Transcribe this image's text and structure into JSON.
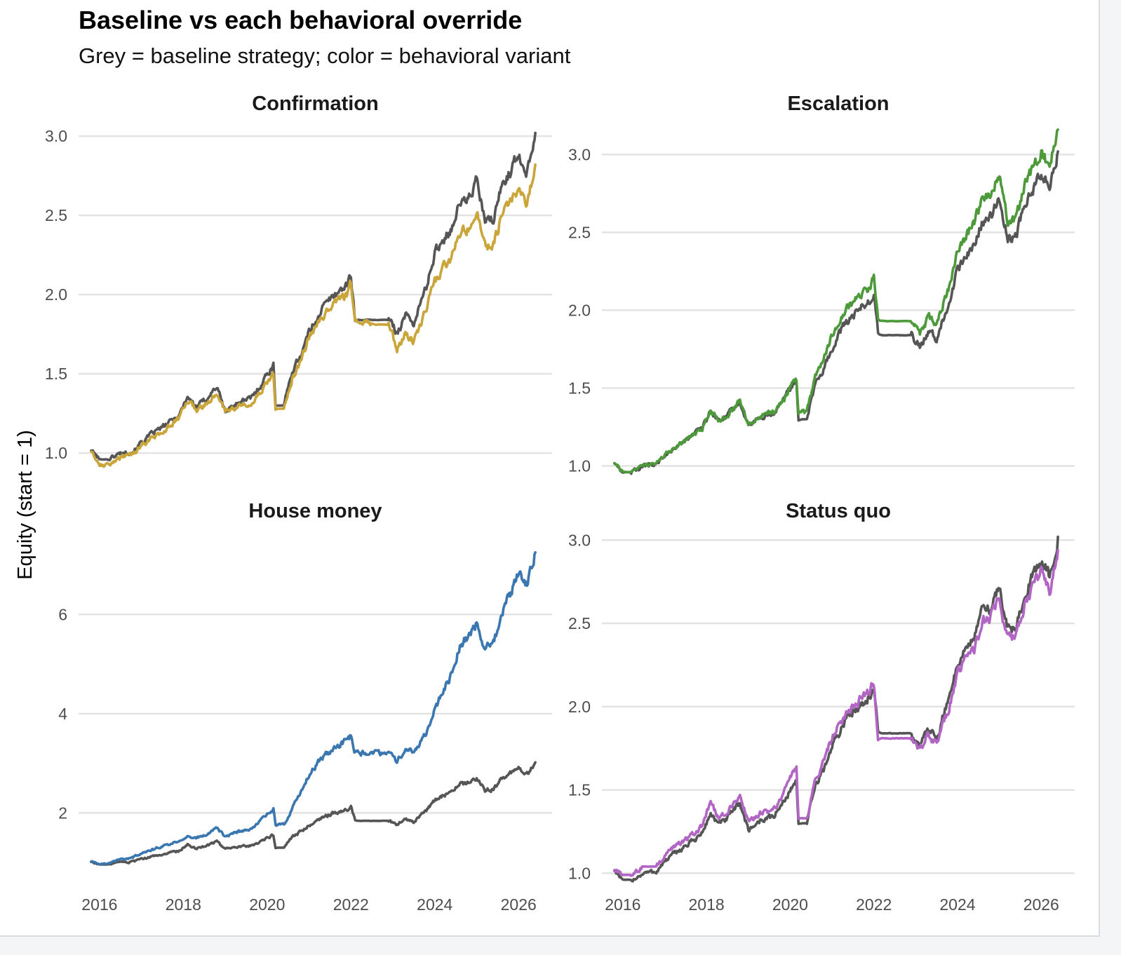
{
  "title": "Baseline vs each behavioral override",
  "subtitle": "Grey = baseline strategy; color = behavioral variant",
  "ylabel": "Equity (start = 1)",
  "baseline_color": "#555555",
  "chart_data": {
    "type": "line",
    "title": "Baseline vs each behavioral override",
    "subtitle": "Grey = baseline strategy; color = behavioral variant",
    "xlabel": "",
    "ylabel": "Equity (start = 1)",
    "x_ticks": [
      "2016",
      "2018",
      "2020",
      "2022",
      "2024",
      "2026"
    ],
    "x_tick_values": [
      2016,
      2018,
      2020,
      2022,
      2024,
      2026
    ],
    "x_range": [
      2015.5,
      2026.8
    ],
    "grid": "horizontal",
    "x": [
      2015.8,
      2016.0,
      2016.2,
      2016.5,
      2016.8,
      2017.0,
      2017.3,
      2017.6,
      2017.9,
      2018.1,
      2018.3,
      2018.5,
      2018.8,
      2019.0,
      2019.3,
      2019.6,
      2019.8,
      2020.0,
      2020.15,
      2020.2,
      2020.4,
      2020.6,
      2020.8,
      2021.0,
      2021.3,
      2021.6,
      2021.9,
      2022.0,
      2022.1,
      2022.5,
      2022.9,
      2023.1,
      2023.3,
      2023.5,
      2023.8,
      2024.0,
      2024.2,
      2024.4,
      2024.6,
      2024.8,
      2025.0,
      2025.2,
      2025.4,
      2025.6,
      2025.8,
      2026.0,
      2026.2,
      2026.4
    ],
    "baseline": [
      1.02,
      0.96,
      0.96,
      1.0,
      1.01,
      1.07,
      1.13,
      1.18,
      1.24,
      1.36,
      1.29,
      1.33,
      1.42,
      1.26,
      1.32,
      1.34,
      1.41,
      1.5,
      1.55,
      1.3,
      1.3,
      1.52,
      1.62,
      1.76,
      1.91,
      2.0,
      2.06,
      2.12,
      1.84,
      1.84,
      1.84,
      1.76,
      1.87,
      1.82,
      2.05,
      2.26,
      2.35,
      2.42,
      2.58,
      2.6,
      2.72,
      2.46,
      2.47,
      2.69,
      2.78,
      2.88,
      2.78,
      3.02
    ],
    "facets": [
      {
        "title": "Confirmation",
        "color": "#c9a53a",
        "y_ticks": [
          "1.0",
          "1.5",
          "2.0",
          "2.5",
          "3.0"
        ],
        "y_tick_values": [
          1.0,
          1.5,
          2.0,
          2.5,
          3.0
        ],
        "ylim": [
          0.85,
          3.08
        ],
        "values": [
          1.01,
          0.93,
          0.92,
          0.97,
          0.99,
          1.05,
          1.1,
          1.15,
          1.22,
          1.33,
          1.27,
          1.3,
          1.37,
          1.26,
          1.3,
          1.32,
          1.37,
          1.45,
          1.5,
          1.28,
          1.28,
          1.47,
          1.58,
          1.73,
          1.86,
          1.95,
          2.0,
          2.07,
          1.82,
          1.81,
          1.81,
          1.66,
          1.75,
          1.7,
          1.92,
          2.08,
          2.17,
          2.23,
          2.39,
          2.42,
          2.53,
          2.3,
          2.31,
          2.5,
          2.58,
          2.68,
          2.57,
          2.82
        ]
      },
      {
        "title": "Escalation",
        "color": "#4d9a3a",
        "y_ticks": [
          "1.0",
          "1.5",
          "2.0",
          "2.5",
          "3.0"
        ],
        "y_tick_values": [
          1.0,
          1.5,
          2.0,
          2.5,
          3.0
        ],
        "ylim": [
          0.93,
          3.2
        ],
        "values": [
          1.02,
          0.96,
          0.96,
          1.0,
          1.01,
          1.07,
          1.13,
          1.18,
          1.24,
          1.36,
          1.29,
          1.33,
          1.42,
          1.26,
          1.32,
          1.34,
          1.41,
          1.5,
          1.56,
          1.33,
          1.35,
          1.57,
          1.68,
          1.84,
          1.99,
          2.08,
          2.15,
          2.21,
          1.93,
          1.93,
          1.93,
          1.84,
          1.96,
          1.91,
          2.15,
          2.38,
          2.48,
          2.56,
          2.73,
          2.76,
          2.88,
          2.57,
          2.58,
          2.81,
          2.91,
          3.02,
          2.92,
          3.16
        ]
      },
      {
        "title": "House money",
        "color": "#3a77b0",
        "y_ticks": [
          "2",
          "4",
          "6"
        ],
        "y_tick_values": [
          2,
          4,
          6
        ],
        "ylim": [
          0.55,
          7.7
        ],
        "values": [
          1.02,
          0.97,
          0.99,
          1.06,
          1.1,
          1.18,
          1.27,
          1.35,
          1.45,
          1.55,
          1.5,
          1.55,
          1.7,
          1.52,
          1.62,
          1.66,
          1.8,
          1.98,
          2.08,
          1.75,
          1.77,
          2.1,
          2.42,
          2.78,
          3.1,
          3.3,
          3.45,
          3.55,
          3.22,
          3.21,
          3.2,
          3.02,
          3.3,
          3.22,
          3.6,
          4.1,
          4.45,
          4.8,
          5.4,
          5.55,
          5.85,
          5.3,
          5.4,
          6.0,
          6.4,
          6.85,
          6.6,
          7.25
        ]
      },
      {
        "title": "Status quo",
        "color": "#b365c6",
        "y_ticks": [
          "1.0",
          "1.5",
          "2.0",
          "2.5",
          "3.0"
        ],
        "y_tick_values": [
          1.0,
          1.5,
          2.0,
          2.5,
          3.0
        ],
        "ylim": [
          0.93,
          3.06
        ],
        "values": [
          1.02,
          0.99,
          0.99,
          1.04,
          1.04,
          1.1,
          1.17,
          1.22,
          1.28,
          1.42,
          1.33,
          1.37,
          1.47,
          1.31,
          1.36,
          1.38,
          1.46,
          1.58,
          1.63,
          1.33,
          1.33,
          1.56,
          1.66,
          1.82,
          1.95,
          2.03,
          2.09,
          2.15,
          1.81,
          1.81,
          1.81,
          1.74,
          1.83,
          1.78,
          2.0,
          2.2,
          2.28,
          2.35,
          2.5,
          2.54,
          2.64,
          2.4,
          2.42,
          2.62,
          2.72,
          2.8,
          2.7,
          2.94
        ]
      }
    ]
  }
}
